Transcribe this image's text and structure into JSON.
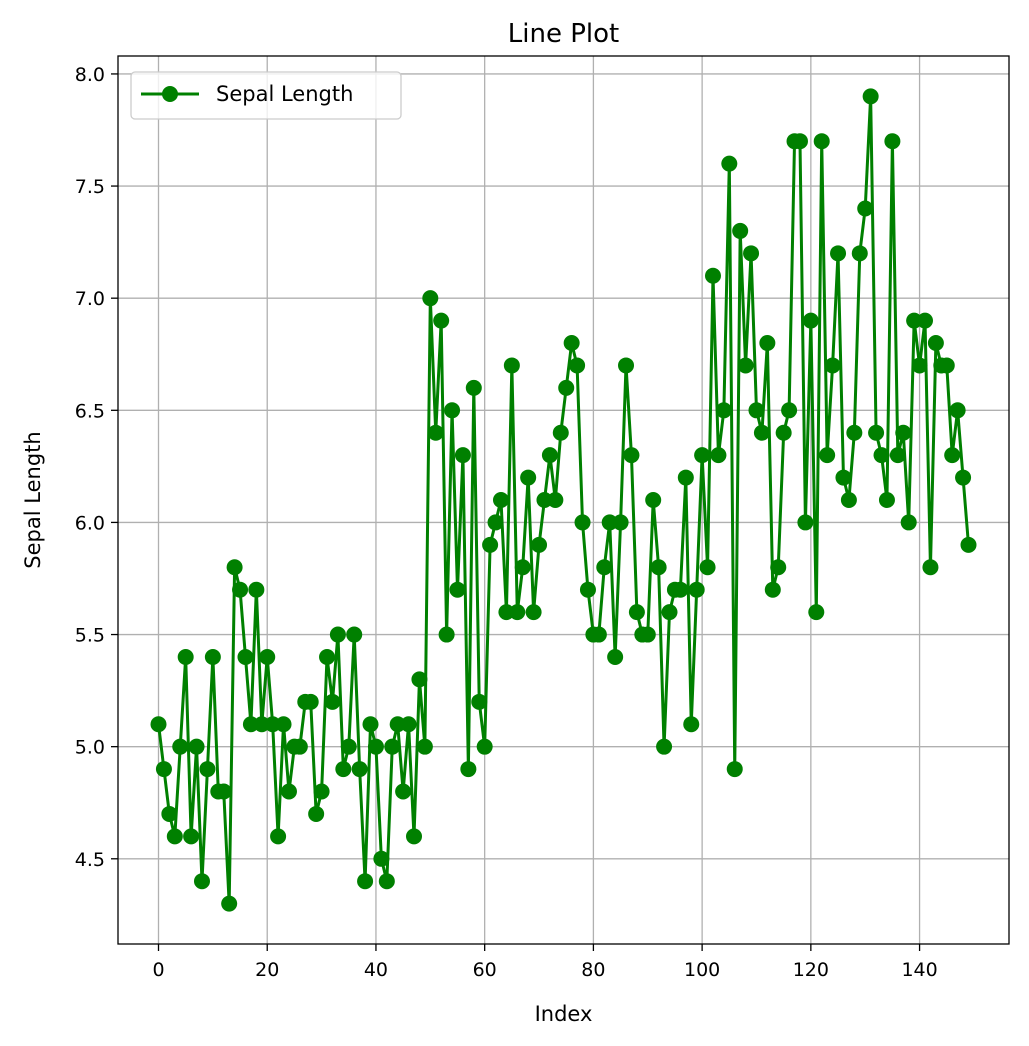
{
  "chart_data": {
    "type": "line",
    "title": "Line Plot",
    "xlabel": "Index",
    "ylabel": "Sepal Length",
    "xlim": [
      -7.45,
      156.45
    ],
    "ylim": [
      4.12,
      8.08
    ],
    "xticks": [
      0,
      20,
      40,
      60,
      80,
      100,
      120,
      140
    ],
    "yticks": [
      4.5,
      5.0,
      5.5,
      6.0,
      6.5,
      7.0,
      7.5,
      8.0
    ],
    "xtick_labels": [
      "0",
      "20",
      "40",
      "60",
      "80",
      "100",
      "120",
      "140"
    ],
    "ytick_labels": [
      "4.5",
      "5.0",
      "5.5",
      "6.0",
      "6.5",
      "7.0",
      "7.5",
      "8.0"
    ],
    "grid": true,
    "legend": {
      "placement": "top-left",
      "entries": [
        "Sepal Length"
      ]
    },
    "series": [
      {
        "name": "Sepal Length",
        "color": "#008000",
        "marker": "circle",
        "values": [
          5.1,
          4.9,
          4.7,
          4.6,
          5.0,
          5.4,
          4.6,
          5.0,
          4.4,
          4.9,
          5.4,
          4.8,
          4.8,
          4.3,
          5.8,
          5.7,
          5.4,
          5.1,
          5.7,
          5.1,
          5.4,
          5.1,
          4.6,
          5.1,
          4.8,
          5.0,
          5.0,
          5.2,
          5.2,
          4.7,
          4.8,
          5.4,
          5.2,
          5.5,
          4.9,
          5.0,
          5.5,
          4.9,
          4.4,
          5.1,
          5.0,
          4.5,
          4.4,
          5.0,
          5.1,
          4.8,
          5.1,
          4.6,
          5.3,
          5.0,
          7.0,
          6.4,
          6.9,
          5.5,
          6.5,
          5.7,
          6.3,
          4.9,
          6.6,
          5.2,
          5.0,
          5.9,
          6.0,
          6.1,
          5.6,
          6.7,
          5.6,
          5.8,
          6.2,
          5.6,
          5.9,
          6.1,
          6.3,
          6.1,
          6.4,
          6.6,
          6.8,
          6.7,
          6.0,
          5.7,
          5.5,
          5.5,
          5.8,
          6.0,
          5.4,
          6.0,
          6.7,
          6.3,
          5.6,
          5.5,
          5.5,
          6.1,
          5.8,
          5.0,
          5.6,
          5.7,
          5.7,
          6.2,
          5.1,
          5.7,
          6.3,
          5.8,
          7.1,
          6.3,
          6.5,
          7.6,
          4.9,
          7.3,
          6.7,
          7.2,
          6.5,
          6.4,
          6.8,
          5.7,
          5.8,
          6.4,
          6.5,
          7.7,
          7.7,
          6.0,
          6.9,
          5.6,
          7.7,
          6.3,
          6.7,
          7.2,
          6.2,
          6.1,
          6.4,
          7.2,
          7.4,
          7.9,
          6.4,
          6.3,
          6.1,
          7.7,
          6.3,
          6.4,
          6.0,
          6.9,
          6.7,
          6.9,
          5.8,
          6.8,
          6.7,
          6.7,
          6.3,
          6.5,
          6.2,
          5.9
        ]
      }
    ]
  }
}
